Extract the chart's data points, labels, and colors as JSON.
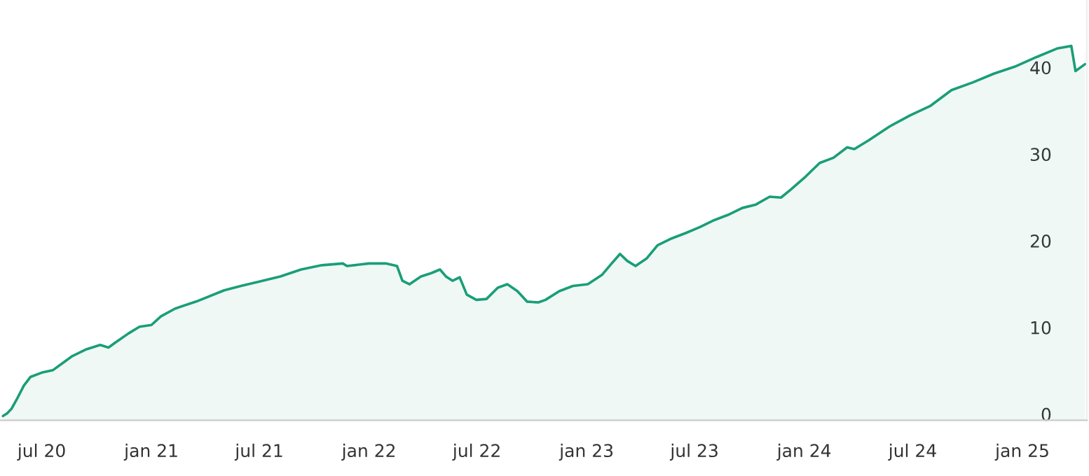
{
  "chart_data": {
    "type": "area",
    "xlim": [
      "2020-04-22",
      "2025-04-19"
    ],
    "xticks": [
      {
        "value": "2020-07-01",
        "label": "jul 20"
      },
      {
        "value": "2021-01-01",
        "label": "jan 21"
      },
      {
        "value": "2021-07-01",
        "label": "jul 21"
      },
      {
        "value": "2022-01-01",
        "label": "jan 22"
      },
      {
        "value": "2022-07-01",
        "label": "jul 22"
      },
      {
        "value": "2023-01-01",
        "label": "jan 23"
      },
      {
        "value": "2023-07-01",
        "label": "jul 23"
      },
      {
        "value": "2024-01-01",
        "label": "jan 24"
      },
      {
        "value": "2024-07-01",
        "label": "jul 24"
      },
      {
        "value": "2025-01-01",
        "label": "jan 25"
      }
    ],
    "ylim": [
      -0.5,
      48
    ],
    "yticks": [
      0,
      10,
      20,
      30,
      40
    ],
    "grid": false,
    "legend": false,
    "series": [
      {
        "color": "#1a9e77",
        "x": [
          "2020-04-27",
          "2020-05-04",
          "2020-05-11",
          "2020-05-20",
          "2020-06-01",
          "2020-06-12",
          "2020-07-01",
          "2020-07-20",
          "2020-08-05",
          "2020-08-21",
          "2020-09-14",
          "2020-10-07",
          "2020-10-21",
          "2020-10-31",
          "2020-11-23",
          "2020-12-12",
          "2021-01-01",
          "2021-01-17",
          "2021-02-10",
          "2021-03-17",
          "2021-05-03",
          "2021-05-31",
          "2021-07-01",
          "2021-08-05",
          "2021-09-09",
          "2021-10-14",
          "2021-11-18",
          "2021-11-25",
          "2022-01-01",
          "2022-01-29",
          "2022-02-17",
          "2022-02-26",
          "2022-03-10",
          "2022-03-29",
          "2022-04-16",
          "2022-04-30",
          "2022-05-10",
          "2022-05-21",
          "2022-06-02",
          "2022-06-14",
          "2022-06-30",
          "2022-07-17",
          "2022-08-05",
          "2022-08-21",
          "2022-09-07",
          "2022-09-23",
          "2022-10-12",
          "2022-10-24",
          "2022-11-16",
          "2022-12-09",
          "2023-01-03",
          "2023-01-27",
          "2023-02-12",
          "2023-02-26",
          "2023-03-10",
          "2023-03-24",
          "2023-04-12",
          "2023-04-30",
          "2023-05-24",
          "2023-06-16",
          "2023-07-10",
          "2023-08-03",
          "2023-08-26",
          "2023-09-19",
          "2023-10-12",
          "2023-11-04",
          "2023-11-23",
          "2023-12-09",
          "2024-01-03",
          "2024-01-27",
          "2024-02-19",
          "2024-03-13",
          "2024-03-25",
          "2024-04-18",
          "2024-05-23",
          "2024-06-27",
          "2024-07-31",
          "2024-09-04",
          "2024-10-10",
          "2024-11-14",
          "2024-12-19",
          "2025-01-24",
          "2025-02-28",
          "2025-03-24",
          "2025-03-31",
          "2025-04-16"
        ],
        "values": [
          0,
          0.3,
          0.8,
          1.9,
          3.5,
          4.5,
          5,
          5.3,
          6.1,
          6.9,
          7.7,
          8.2,
          7.9,
          8.4,
          9.5,
          10.3,
          10.5,
          11.5,
          12.4,
          13.2,
          14.5,
          15,
          15.5,
          16.1,
          16.9,
          17.4,
          17.6,
          17.3,
          17.6,
          17.6,
          17.3,
          15.6,
          15.2,
          16.1,
          16.5,
          16.9,
          16.1,
          15.6,
          16,
          14,
          13.4,
          13.5,
          14.8,
          15.2,
          14.4,
          13.2,
          13.1,
          13.4,
          14.4,
          15,
          15.2,
          16.3,
          17.6,
          18.7,
          17.9,
          17.3,
          18.2,
          19.7,
          20.5,
          21.1,
          21.8,
          22.6,
          23.2,
          24,
          24.4,
          25.3,
          25.2,
          26.1,
          27.6,
          29.2,
          29.8,
          31,
          30.8,
          31.8,
          33.4,
          34.7,
          35.8,
          37.6,
          38.5,
          39.5,
          40.3,
          41.4,
          42.4,
          42.7,
          39.8,
          40.6
        ]
      }
    ]
  }
}
